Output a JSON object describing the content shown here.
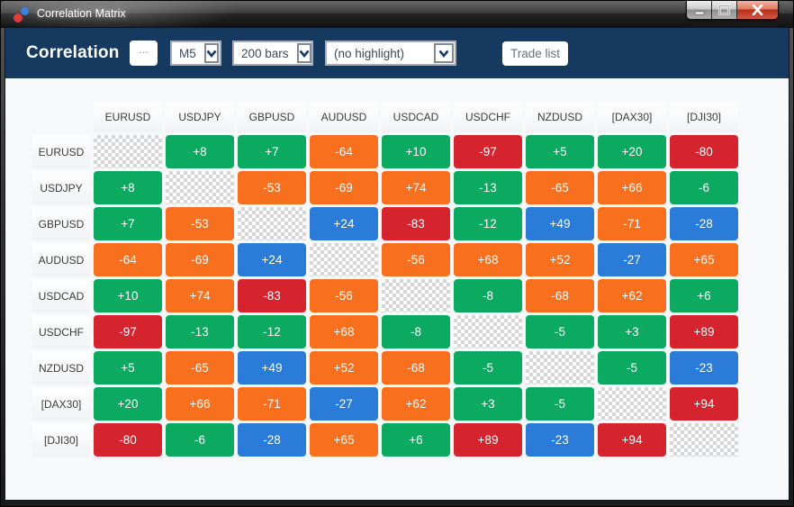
{
  "window": {
    "title": "Correlation Matrix",
    "controls": {
      "minimize": "minimize",
      "maximize": "maximize",
      "close": "close"
    }
  },
  "toolbar": {
    "title": "Correlation",
    "options_button": "...",
    "timeframe": {
      "value": "M5"
    },
    "bars": {
      "value": "200 bars"
    },
    "highlight": {
      "value": "(no highlight)"
    },
    "trade_list_button": "Trade list"
  },
  "colors": {
    "strong": "#d6242f",
    "medium": "#f8701d",
    "weak": "#2b7cd9",
    "minimal": "#0caa61",
    "header_bg": "#15395f"
  },
  "thresholds": {
    "strong_min": 80,
    "medium_min": 50,
    "weak_min": 21
  },
  "chart_data": {
    "type": "heatmap",
    "title": "Correlation Matrix",
    "categories": [
      "EURUSD",
      "USDJPY",
      "GBPUSD",
      "AUDUSD",
      "USDCAD",
      "USDCHF",
      "NZDUSD",
      "[DAX30]",
      "[DJI30]"
    ],
    "rows": [
      {
        "symbol": "EURUSD",
        "values": [
          null,
          8,
          7,
          -64,
          10,
          -97,
          5,
          20,
          -80
        ]
      },
      {
        "symbol": "USDJPY",
        "values": [
          8,
          null,
          -53,
          -69,
          74,
          -13,
          -65,
          66,
          -6
        ]
      },
      {
        "symbol": "GBPUSD",
        "values": [
          7,
          -53,
          null,
          24,
          -83,
          -12,
          49,
          -71,
          -28
        ]
      },
      {
        "symbol": "AUDUSD",
        "values": [
          -64,
          -69,
          24,
          null,
          -56,
          68,
          52,
          -27,
          65
        ]
      },
      {
        "symbol": "USDCAD",
        "values": [
          10,
          74,
          -83,
          -56,
          null,
          -8,
          -68,
          62,
          6
        ]
      },
      {
        "symbol": "USDCHF",
        "values": [
          -97,
          -13,
          -12,
          68,
          -8,
          null,
          -5,
          3,
          89
        ]
      },
      {
        "symbol": "NZDUSD",
        "values": [
          5,
          -65,
          49,
          52,
          -68,
          -5,
          null,
          -5,
          -23
        ]
      },
      {
        "symbol": "[DAX30]",
        "values": [
          20,
          66,
          -71,
          -27,
          62,
          3,
          -5,
          null,
          94
        ]
      },
      {
        "symbol": "[DJI30]",
        "values": [
          -80,
          -6,
          -28,
          65,
          6,
          89,
          -23,
          94,
          null
        ]
      }
    ]
  }
}
